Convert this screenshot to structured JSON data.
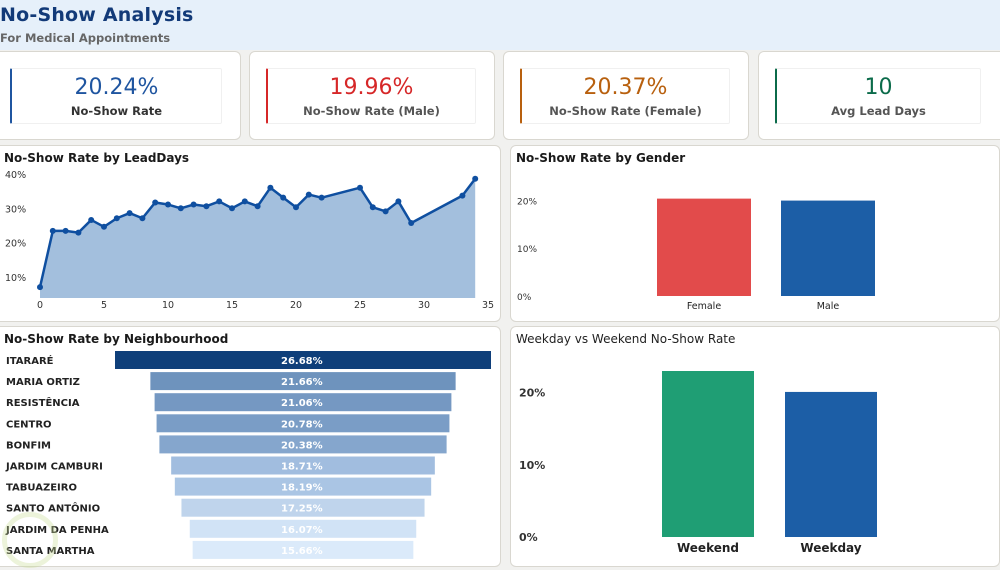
{
  "header": {
    "title": "No-Show Analysis",
    "subtitle": "For Medical Appointments"
  },
  "kpis": [
    {
      "value": "20.24%",
      "label": "No-Show Rate",
      "color": "#1f55a0"
    },
    {
      "value": "19.96%",
      "label": "No-Show Rate (Male)",
      "color": "#d62728"
    },
    {
      "value": "20.37%",
      "label": "No-Show Rate (Female)",
      "color": "#b8600e"
    },
    {
      "value": "10",
      "label": "Avg Lead Days",
      "color": "#0b6b4a"
    }
  ],
  "chart_data": [
    {
      "type": "area",
      "title": "No-Show Rate by LeadDays",
      "xlabel": "",
      "ylabel": "",
      "x": [
        0,
        1,
        2,
        3,
        4,
        5,
        6,
        7,
        8,
        9,
        10,
        11,
        12,
        13,
        14,
        15,
        16,
        17,
        18,
        19,
        20,
        21,
        22,
        25,
        26,
        27,
        28,
        29,
        33,
        34
      ],
      "values": [
        7.0,
        23.4,
        23.4,
        22.9,
        26.6,
        24.6,
        27.1,
        28.6,
        27.1,
        31.7,
        31.1,
        30.0,
        31.1,
        30.6,
        32.0,
        30.0,
        32.0,
        30.6,
        36.0,
        33.1,
        30.3,
        34.0,
        33.1,
        36.0,
        30.3,
        29.1,
        32.0,
        25.7,
        33.7,
        38.6
      ],
      "xticks": [
        "0",
        "5",
        "10",
        "15",
        "20",
        "25",
        "30",
        "35"
      ],
      "yticks": [
        "10%",
        "20%",
        "30%",
        "40%"
      ],
      "xlim": [
        0,
        35
      ],
      "ylim": [
        5,
        40
      ],
      "line_color": "#0f4fa0",
      "fill_color": "#a3bfdd"
    },
    {
      "type": "bar",
      "title": "No-Show Rate by Gender",
      "categories": [
        "Female",
        "Male"
      ],
      "values": [
        20.37,
        19.96
      ],
      "colors": [
        "#e24b4b",
        "#1c5ea6"
      ],
      "yticks": [
        "0%",
        "10%",
        "20%"
      ],
      "ylim": [
        0,
        20.5
      ]
    },
    {
      "type": "bar",
      "orientation": "horizontal-funnel",
      "title": "No-Show Rate by Neighbourhood",
      "categories": [
        "ITARARÉ",
        "MARIA ORTIZ",
        "RESISTÊNCIA",
        "CENTRO",
        "BONFIM",
        "JARDIM CAMBURI",
        "TABUAZEIRO",
        "SANTO ANTÔNIO",
        "JARDIM DA PENHA",
        "SANTA MARTHA"
      ],
      "values": [
        26.68,
        21.66,
        21.06,
        20.78,
        20.38,
        18.71,
        18.19,
        17.25,
        16.07,
        15.66
      ],
      "labels": [
        "26.68%",
        "21.66%",
        "21.06%",
        "20.78%",
        "20.38%",
        "18.71%",
        "18.19%",
        "17.25%",
        "16.07%",
        "15.66%"
      ],
      "colors": [
        "#0f3f7a",
        "#6e93bd",
        "#7598c2",
        "#7a9dc6",
        "#85a6cd",
        "#a1bddf",
        "#aac5e4",
        "#bfd4ec",
        "#d1e3f6",
        "#dbeafa"
      ]
    },
    {
      "type": "bar",
      "title": "Weekday vs Weekend No-Show Rate",
      "categories": [
        "Weekend",
        "Weekday"
      ],
      "values": [
        23.0,
        20.1
      ],
      "colors": [
        "#1f9e74",
        "#1c5ea6"
      ],
      "yticks": [
        "0%",
        "10%",
        "20%"
      ],
      "ylim": [
        0,
        23
      ]
    }
  ]
}
